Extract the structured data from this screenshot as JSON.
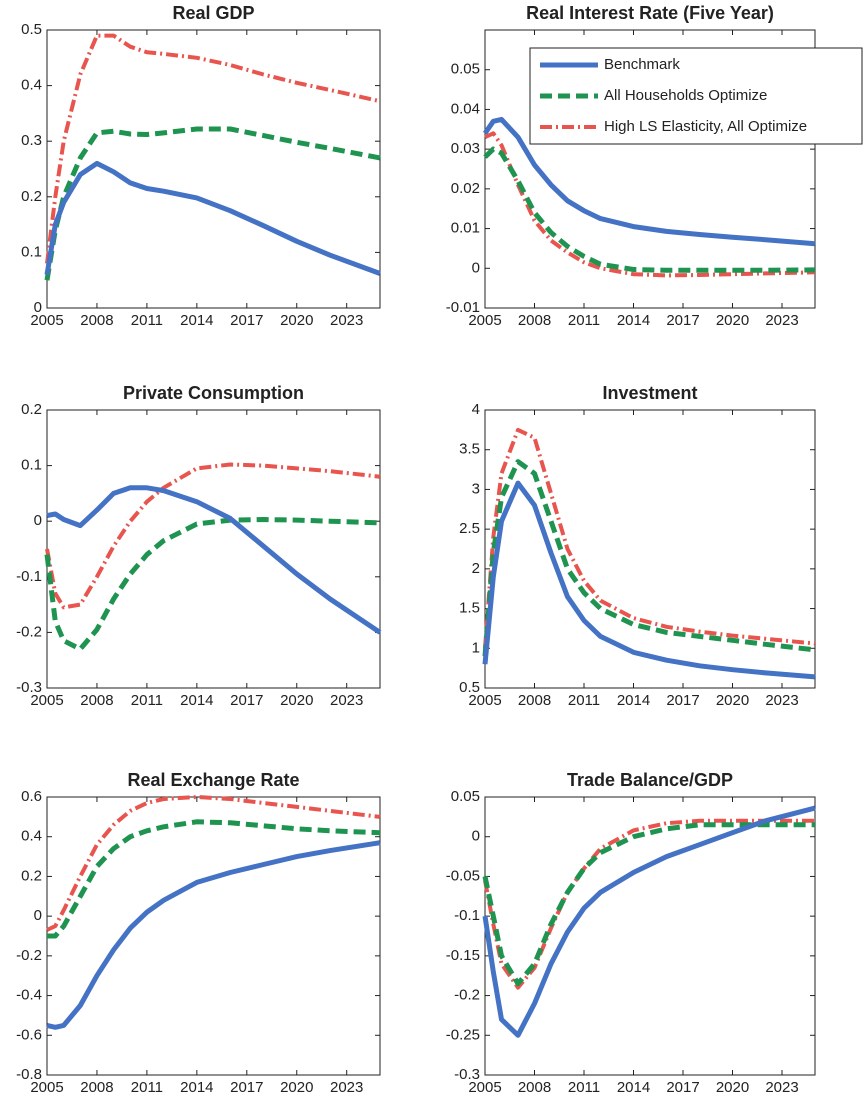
{
  "chart_data": [
    {
      "type": "line",
      "title": "Real GDP",
      "x": [
        2005,
        2005.5,
        2006,
        2007,
        2008,
        2009,
        2010,
        2011,
        2012,
        2014,
        2016,
        2018,
        2020,
        2022,
        2025
      ],
      "xlim": [
        2005,
        2025
      ],
      "xticks": [
        2005,
        2008,
        2011,
        2014,
        2017,
        2020,
        2023
      ],
      "ylim": [
        0,
        0.5
      ],
      "yticks": [
        0,
        0.1,
        0.2,
        0.3,
        0.4,
        0.5
      ],
      "series": [
        {
          "color": "#4472c4",
          "style": "solid",
          "values": [
            0.06,
            0.15,
            0.19,
            0.24,
            0.26,
            0.245,
            0.225,
            0.215,
            0.21,
            0.198,
            0.175,
            0.148,
            0.12,
            0.095,
            0.062
          ]
        },
        {
          "color": "#1e9450",
          "style": "dashed",
          "values": [
            0.05,
            0.14,
            0.2,
            0.27,
            0.315,
            0.318,
            0.313,
            0.312,
            0.315,
            0.322,
            0.322,
            0.31,
            0.298,
            0.287,
            0.27
          ]
        },
        {
          "color": "#e8554e",
          "style": "dashdot",
          "values": [
            0.08,
            0.2,
            0.3,
            0.42,
            0.49,
            0.49,
            0.47,
            0.46,
            0.457,
            0.45,
            0.437,
            0.42,
            0.405,
            0.392,
            0.372
          ]
        }
      ]
    },
    {
      "type": "line",
      "title": "Real Interest Rate (Five Year)",
      "x": [
        2005,
        2005.5,
        2006,
        2007,
        2008,
        2009,
        2010,
        2011,
        2012,
        2014,
        2016,
        2018,
        2020,
        2022,
        2025
      ],
      "xlim": [
        2005,
        2025
      ],
      "xticks": [
        2005,
        2008,
        2011,
        2014,
        2017,
        2020,
        2023
      ],
      "ylim": [
        -0.01,
        0.06
      ],
      "yticks": [
        -0.01,
        0,
        0.01,
        0.02,
        0.03,
        0.04,
        0.05
      ],
      "legend": "upper right",
      "series": [
        {
          "name": "Benchmark",
          "color": "#4472c4",
          "style": "solid",
          "values": [
            0.034,
            0.037,
            0.0375,
            0.033,
            0.026,
            0.021,
            0.017,
            0.0145,
            0.0125,
            0.0105,
            0.0093,
            0.0085,
            0.0078,
            0.0072,
            0.0062
          ]
        },
        {
          "name": "All Households Optimize",
          "color": "#1e9450",
          "style": "dashed",
          "values": [
            0.028,
            0.03,
            0.029,
            0.022,
            0.014,
            0.009,
            0.0055,
            0.003,
            0.001,
            -0.0003,
            -0.0005,
            -0.0005,
            -0.0005,
            -0.0005,
            -0.0004
          ]
        },
        {
          "name": "High LS Elasticity, All Optimize",
          "color": "#e8554e",
          "style": "dashdot",
          "values": [
            0.033,
            0.034,
            0.031,
            0.021,
            0.012,
            0.007,
            0.004,
            0.0015,
            0.0,
            -0.0015,
            -0.0018,
            -0.0017,
            -0.0015,
            -0.0013,
            -0.001
          ]
        }
      ]
    },
    {
      "type": "line",
      "title": "Private Consumption",
      "x": [
        2005,
        2005.5,
        2006,
        2007,
        2008,
        2009,
        2010,
        2011,
        2012,
        2014,
        2016,
        2018,
        2020,
        2022,
        2025
      ],
      "xlim": [
        2005,
        2025
      ],
      "xticks": [
        2005,
        2008,
        2011,
        2014,
        2017,
        2020,
        2023
      ],
      "ylim": [
        -0.3,
        0.2
      ],
      "yticks": [
        -0.3,
        -0.2,
        -0.1,
        0,
        0.1,
        0.2
      ],
      "series": [
        {
          "color": "#4472c4",
          "style": "solid",
          "values": [
            0.01,
            0.013,
            0.003,
            -0.008,
            0.02,
            0.05,
            0.06,
            0.06,
            0.055,
            0.035,
            0.005,
            -0.045,
            -0.095,
            -0.14,
            -0.2
          ]
        },
        {
          "color": "#1e9450",
          "style": "dashed",
          "values": [
            -0.06,
            -0.18,
            -0.215,
            -0.23,
            -0.195,
            -0.14,
            -0.095,
            -0.06,
            -0.035,
            -0.005,
            0.002,
            0.003,
            0.002,
            0,
            -0.003
          ]
        },
        {
          "color": "#e8554e",
          "style": "dashdot",
          "values": [
            -0.05,
            -0.13,
            -0.155,
            -0.15,
            -0.1,
            -0.045,
            0.0,
            0.035,
            0.06,
            0.095,
            0.102,
            0.1,
            0.095,
            0.09,
            0.08
          ]
        }
      ]
    },
    {
      "type": "line",
      "title": "Investment",
      "x": [
        2005,
        2005.5,
        2006,
        2007,
        2008,
        2009,
        2010,
        2011,
        2012,
        2014,
        2016,
        2018,
        2020,
        2022,
        2025
      ],
      "xlim": [
        2005,
        2025
      ],
      "xticks": [
        2005,
        2008,
        2011,
        2014,
        2017,
        2020,
        2023
      ],
      "ylim": [
        0.5,
        4
      ],
      "yticks": [
        0.5,
        1,
        1.5,
        2,
        2.5,
        3,
        3.5,
        4
      ],
      "series": [
        {
          "color": "#4472c4",
          "style": "solid",
          "values": [
            0.8,
            1.9,
            2.6,
            3.08,
            2.8,
            2.2,
            1.65,
            1.35,
            1.15,
            0.95,
            0.85,
            0.78,
            0.73,
            0.69,
            0.64
          ]
        },
        {
          "color": "#1e9450",
          "style": "dashed",
          "values": [
            0.9,
            2.2,
            2.9,
            3.35,
            3.2,
            2.6,
            2.0,
            1.7,
            1.5,
            1.3,
            1.2,
            1.15,
            1.1,
            1.05,
            0.98
          ]
        },
        {
          "color": "#e8554e",
          "style": "dashdot",
          "values": [
            1.0,
            2.4,
            3.2,
            3.75,
            3.65,
            2.95,
            2.25,
            1.85,
            1.6,
            1.38,
            1.27,
            1.21,
            1.16,
            1.12,
            1.06
          ]
        }
      ]
    },
    {
      "type": "line",
      "title": "Real Exchange Rate",
      "x": [
        2005,
        2005.5,
        2006,
        2007,
        2008,
        2009,
        2010,
        2011,
        2012,
        2014,
        2016,
        2018,
        2020,
        2022,
        2025
      ],
      "xlim": [
        2005,
        2025
      ],
      "xticks": [
        2005,
        2008,
        2011,
        2014,
        2017,
        2020,
        2023
      ],
      "ylim": [
        -0.8,
        0.6
      ],
      "yticks": [
        -0.8,
        -0.6,
        -0.4,
        -0.2,
        0,
        0.2,
        0.4,
        0.6
      ],
      "series": [
        {
          "color": "#4472c4",
          "style": "solid",
          "values": [
            -0.55,
            -0.56,
            -0.55,
            -0.45,
            -0.3,
            -0.17,
            -0.06,
            0.02,
            0.08,
            0.17,
            0.22,
            0.26,
            0.3,
            0.33,
            0.37
          ]
        },
        {
          "color": "#1e9450",
          "style": "dashed",
          "values": [
            -0.1,
            -0.1,
            -0.05,
            0.1,
            0.25,
            0.34,
            0.4,
            0.43,
            0.45,
            0.475,
            0.47,
            0.455,
            0.44,
            0.43,
            0.42
          ]
        },
        {
          "color": "#e8554e",
          "style": "dashdot",
          "values": [
            -0.07,
            -0.05,
            0.03,
            0.2,
            0.36,
            0.46,
            0.53,
            0.57,
            0.59,
            0.6,
            0.59,
            0.57,
            0.55,
            0.53,
            0.5
          ]
        }
      ]
    },
    {
      "type": "line",
      "title": "Trade Balance/GDP",
      "x": [
        2005,
        2005.5,
        2006,
        2007,
        2008,
        2009,
        2010,
        2011,
        2012,
        2014,
        2016,
        2018,
        2020,
        2022,
        2025
      ],
      "xlim": [
        2005,
        2025
      ],
      "xticks": [
        2005,
        2008,
        2011,
        2014,
        2017,
        2020,
        2023
      ],
      "ylim": [
        -0.3,
        0.05
      ],
      "yticks": [
        -0.3,
        -0.25,
        -0.2,
        -0.15,
        -0.1,
        -0.05,
        0,
        0.05
      ],
      "series": [
        {
          "color": "#4472c4",
          "style": "solid",
          "values": [
            -0.1,
            -0.17,
            -0.23,
            -0.25,
            -0.21,
            -0.16,
            -0.12,
            -0.09,
            -0.07,
            -0.045,
            -0.025,
            -0.01,
            0.005,
            0.02,
            0.036
          ]
        },
        {
          "color": "#1e9450",
          "style": "dashed",
          "values": [
            -0.05,
            -0.1,
            -0.15,
            -0.185,
            -0.16,
            -0.11,
            -0.07,
            -0.04,
            -0.02,
            0.0,
            0.01,
            0.015,
            0.015,
            0.015,
            0.015
          ]
        },
        {
          "color": "#e8554e",
          "style": "dashdot",
          "values": [
            -0.055,
            -0.11,
            -0.16,
            -0.19,
            -0.165,
            -0.115,
            -0.07,
            -0.04,
            -0.015,
            0.008,
            0.017,
            0.02,
            0.02,
            0.02,
            0.02
          ]
        }
      ]
    }
  ]
}
